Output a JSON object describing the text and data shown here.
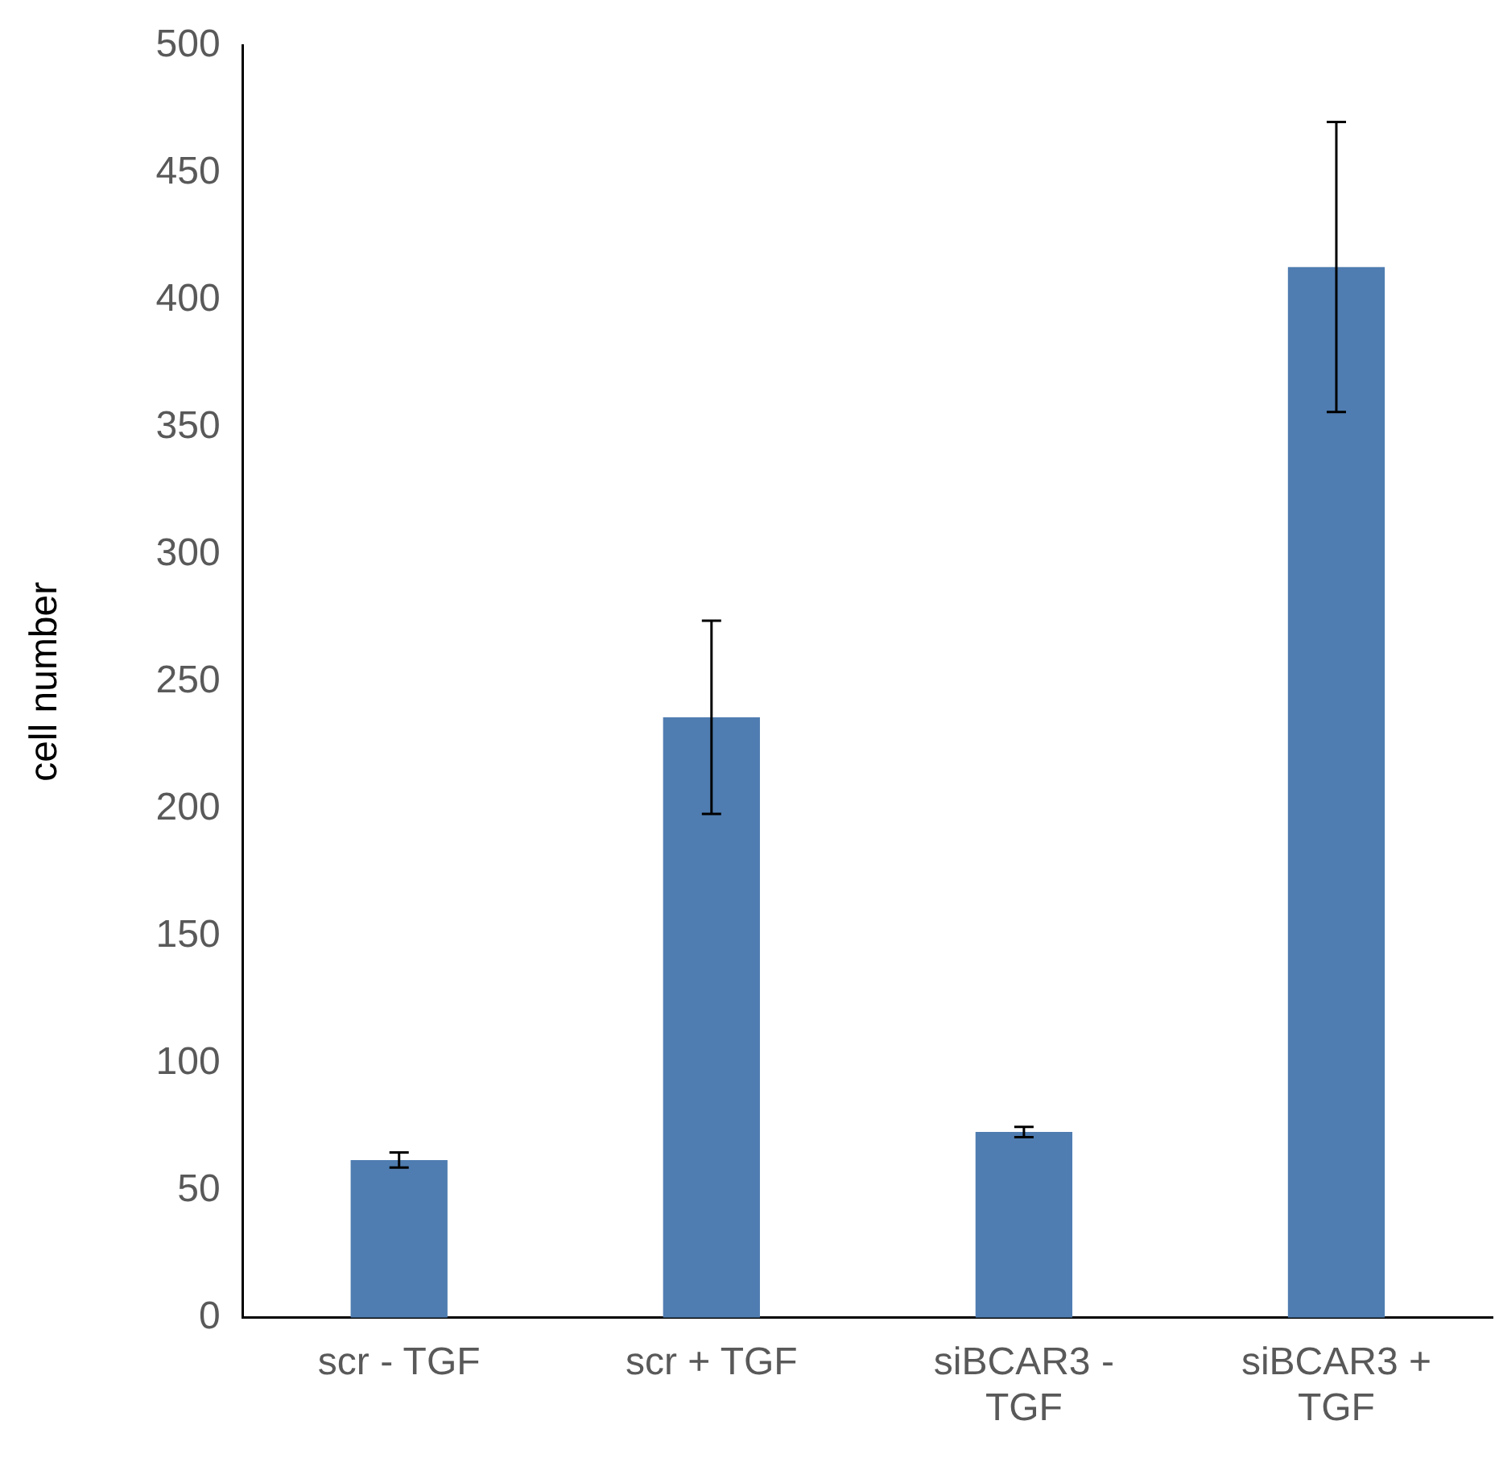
{
  "chart_data": {
    "type": "bar",
    "ylabel": "cell number",
    "categories": [
      "scr - TGF",
      "scr + TGF",
      "siBCAR3 - TGF",
      "siBCAR3 + TGF"
    ],
    "values": [
      62,
      236,
      73,
      413
    ],
    "errors": [
      3,
      38,
      2,
      57
    ],
    "color": "#4f7db1",
    "ylim": [
      0,
      500
    ],
    "yticks": [
      0,
      50,
      100,
      150,
      200,
      250,
      300,
      350,
      400,
      450,
      500
    ],
    "grid": false,
    "legend": false
  }
}
